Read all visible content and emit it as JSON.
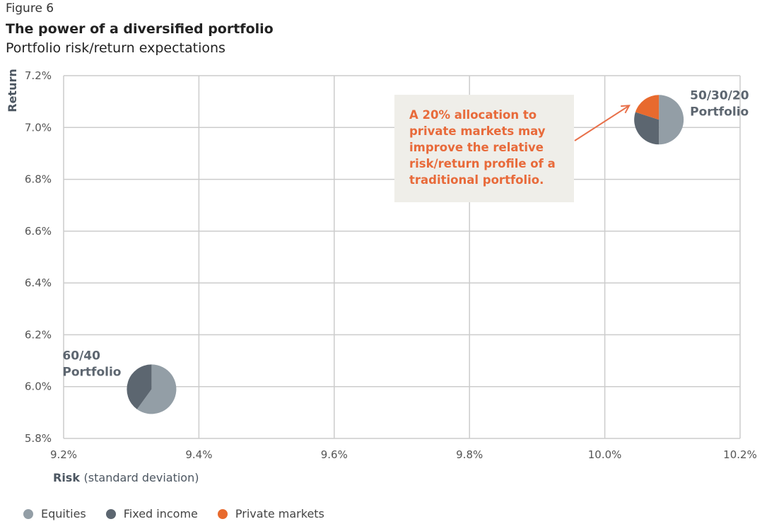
{
  "figure_label": "Figure 6",
  "title": "The power of a diversified portfolio",
  "subtitle": "Portfolio risk/return expectations",
  "callout": {
    "lines": [
      "A 20% allocation to",
      "private markets may",
      "improve the relative",
      "risk/return profile of a",
      "traditional portfolio."
    ]
  },
  "colors": {
    "equities": "#939ea6",
    "fixed_income": "#5c6670",
    "private_markets": "#e86a2e",
    "arrow": "#e8704a",
    "grid": "#cccccc"
  },
  "chart_data": {
    "type": "scatter",
    "xlabel": "Risk",
    "xlabel_suffix": "(standard deviation)",
    "ylabel": "Return",
    "xlim": [
      9.2,
      10.2
    ],
    "ylim": [
      5.8,
      7.2
    ],
    "x_ticks": [
      {
        "value": 9.2,
        "label": "9.2%"
      },
      {
        "value": 9.4,
        "label": "9.4%"
      },
      {
        "value": 9.6,
        "label": "9.6%"
      },
      {
        "value": 9.8,
        "label": "9.8%"
      },
      {
        "value": 10.0,
        "label": "10.0%"
      },
      {
        "value": 10.2,
        "label": "10.2%"
      }
    ],
    "y_ticks": [
      {
        "value": 5.8,
        "label": "5.8%"
      },
      {
        "value": 6.0,
        "label": "6.0%"
      },
      {
        "value": 6.2,
        "label": "6.2%"
      },
      {
        "value": 6.4,
        "label": "6.4%"
      },
      {
        "value": 6.6,
        "label": "6.6%"
      },
      {
        "value": 6.8,
        "label": "6.8%"
      },
      {
        "value": 7.0,
        "label": "7.0%"
      },
      {
        "value": 7.2,
        "label": "7.2%"
      }
    ],
    "grid": true,
    "legend_position": "bottom-left",
    "legend": [
      {
        "name": "Equities",
        "color_key": "equities"
      },
      {
        "name": "Fixed income",
        "color_key": "fixed_income"
      },
      {
        "name": "Private markets",
        "color_key": "private_markets"
      }
    ],
    "points": [
      {
        "label_lines": [
          "60/40",
          "Portfolio"
        ],
        "label_side": "left",
        "x": 9.33,
        "y": 5.99,
        "allocation": [
          {
            "name": "Equities",
            "value": 60
          },
          {
            "name": "Fixed income",
            "value": 40
          },
          {
            "name": "Private markets",
            "value": 0
          }
        ]
      },
      {
        "label_lines": [
          "50/30/20",
          "Portfolio"
        ],
        "label_side": "right",
        "x": 10.08,
        "y": 7.03,
        "allocation": [
          {
            "name": "Equities",
            "value": 50
          },
          {
            "name": "Fixed income",
            "value": 30
          },
          {
            "name": "Private markets",
            "value": 20
          }
        ]
      }
    ]
  }
}
